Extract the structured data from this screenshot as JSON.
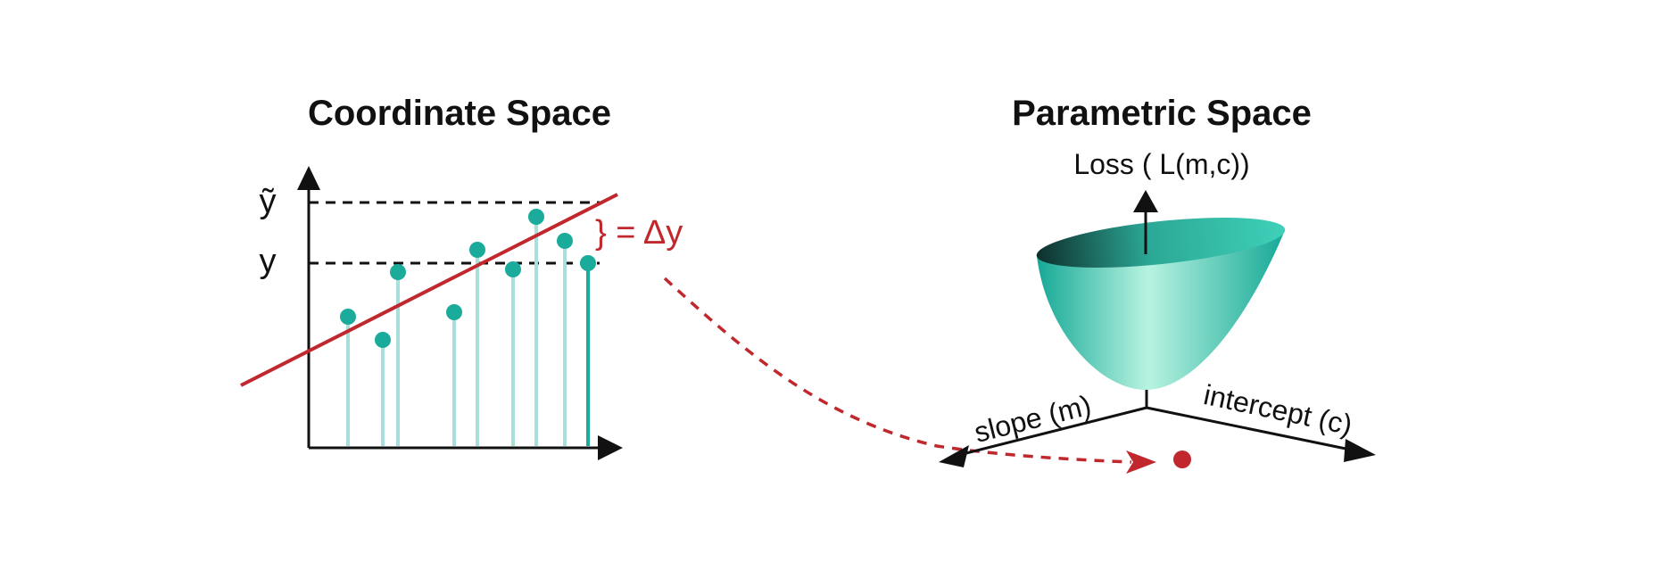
{
  "left_panel": {
    "title": "Coordinate Space",
    "y_tilde_label": "ỹ",
    "y_label": "y",
    "delta_label": "} = Δy"
  },
  "right_panel": {
    "title": "Parametric Space",
    "loss_label": "Loss ( L(m,c))",
    "slope_label": "slope (m)",
    "intercept_label": "intercept (c)"
  },
  "colors": {
    "teal": "#1aab9b",
    "teal_light": "#a9dfda",
    "red": "#c0282e",
    "axis": "#111111",
    "bowl_light": "#b8f3e1",
    "bowl_mid": "#32c3ad"
  }
}
